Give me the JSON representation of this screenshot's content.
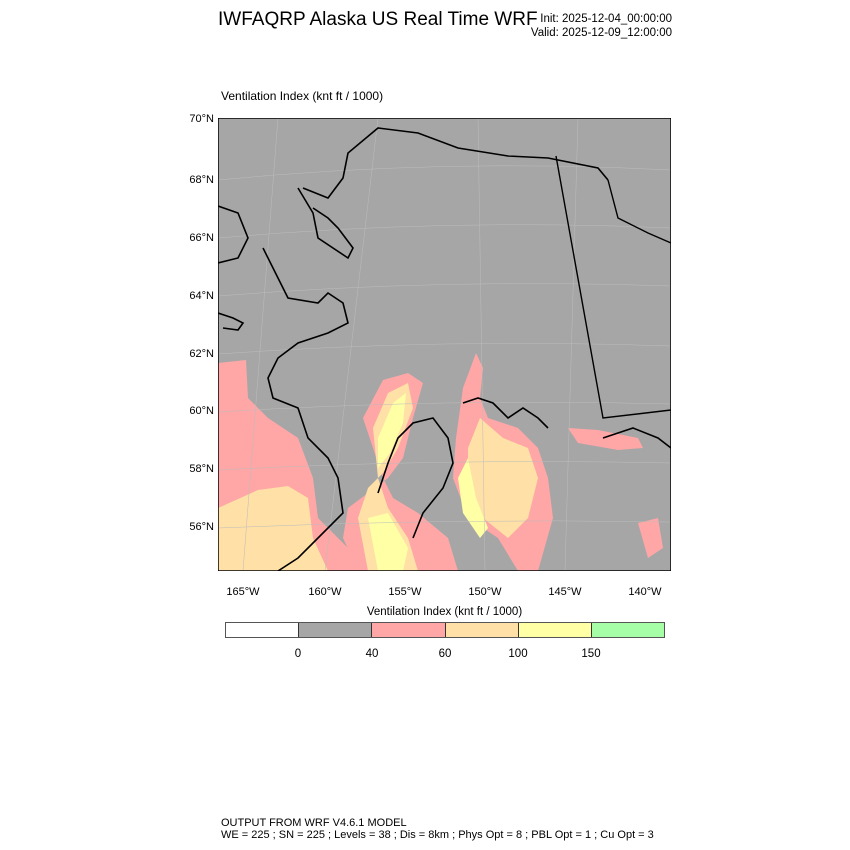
{
  "header": {
    "title": "IWFAQRP Alaska US Real Time WRF",
    "init": "Init: 2025-12-04_00:00:00",
    "valid": "Valid: 2025-12-09_12:00:00"
  },
  "plot": {
    "subtitle": "Ventilation Index   (knt ft / 1000)",
    "lat_labels": [
      "70°N",
      "68°N",
      "66°N",
      "64°N",
      "62°N",
      "60°N",
      "58°N",
      "56°N"
    ],
    "lon_labels": [
      "165°W",
      "160°W",
      "155°W",
      "150°W",
      "145°W",
      "140°W"
    ]
  },
  "colorbar": {
    "title": "Ventilation Index  (knt ft / 1000)",
    "colors": [
      "#ffffff",
      "#a6a6a6",
      "#ffa6a6",
      "#ffe0a6",
      "#ffffa6",
      "#a6ffa6"
    ],
    "labels": [
      "0",
      "40",
      "60",
      "100",
      "150"
    ]
  },
  "footer": {
    "line1": "OUTPUT FROM WRF V4.6.1 MODEL",
    "line2": "WE = 225 ; SN = 225 ; Levels = 38 ; Dis = 8km ; Phys Opt = 8 ; PBL Opt = 1 ; Cu Opt = 3"
  }
}
